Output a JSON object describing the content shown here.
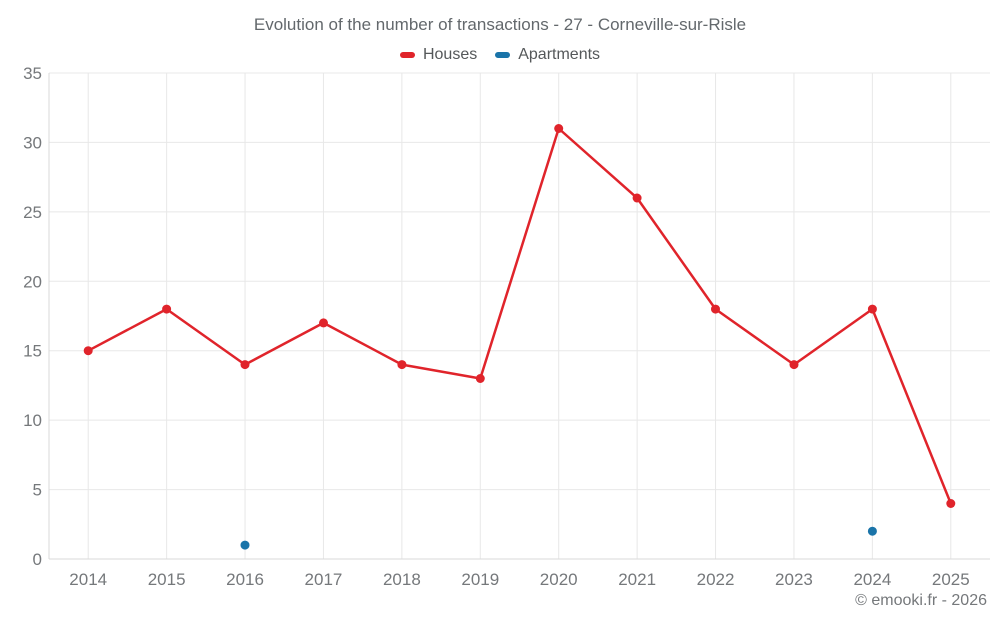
{
  "header": {
    "title": "Evolution of the number of transactions - 27 - Corneville-sur-Risle"
  },
  "legend": [
    {
      "label": "Houses",
      "color": "#e0242b"
    },
    {
      "label": "Apartments",
      "color": "#1a74a9"
    }
  ],
  "footer": {
    "credit": "© emooki.fr - 2026"
  },
  "chart_data": {
    "type": "line",
    "title": "Evolution of the number of transactions - 27 - Corneville-sur-Risle",
    "categories": [
      "2014",
      "2015",
      "2016",
      "2017",
      "2018",
      "2019",
      "2020",
      "2021",
      "2022",
      "2023",
      "2024",
      "2025"
    ],
    "series": [
      {
        "name": "Houses",
        "color": "#e0242b",
        "values": [
          15,
          18,
          14,
          17,
          14,
          13,
          31,
          26,
          18,
          14,
          18,
          4
        ]
      },
      {
        "name": "Apartments",
        "color": "#1a74a9",
        "values": [
          null,
          null,
          1,
          null,
          null,
          null,
          null,
          null,
          null,
          null,
          2,
          null
        ]
      }
    ],
    "xlabel": "",
    "ylabel": "",
    "ylim": [
      0,
      35
    ],
    "ytick_step": 5,
    "yticks": [
      0,
      5,
      10,
      15,
      20,
      25,
      30,
      35
    ],
    "grid": true,
    "legend_position": "top",
    "grid_color": "#e8e8e8",
    "axis_color": "#d9d9d9",
    "tick_label_color": "#75787b"
  }
}
